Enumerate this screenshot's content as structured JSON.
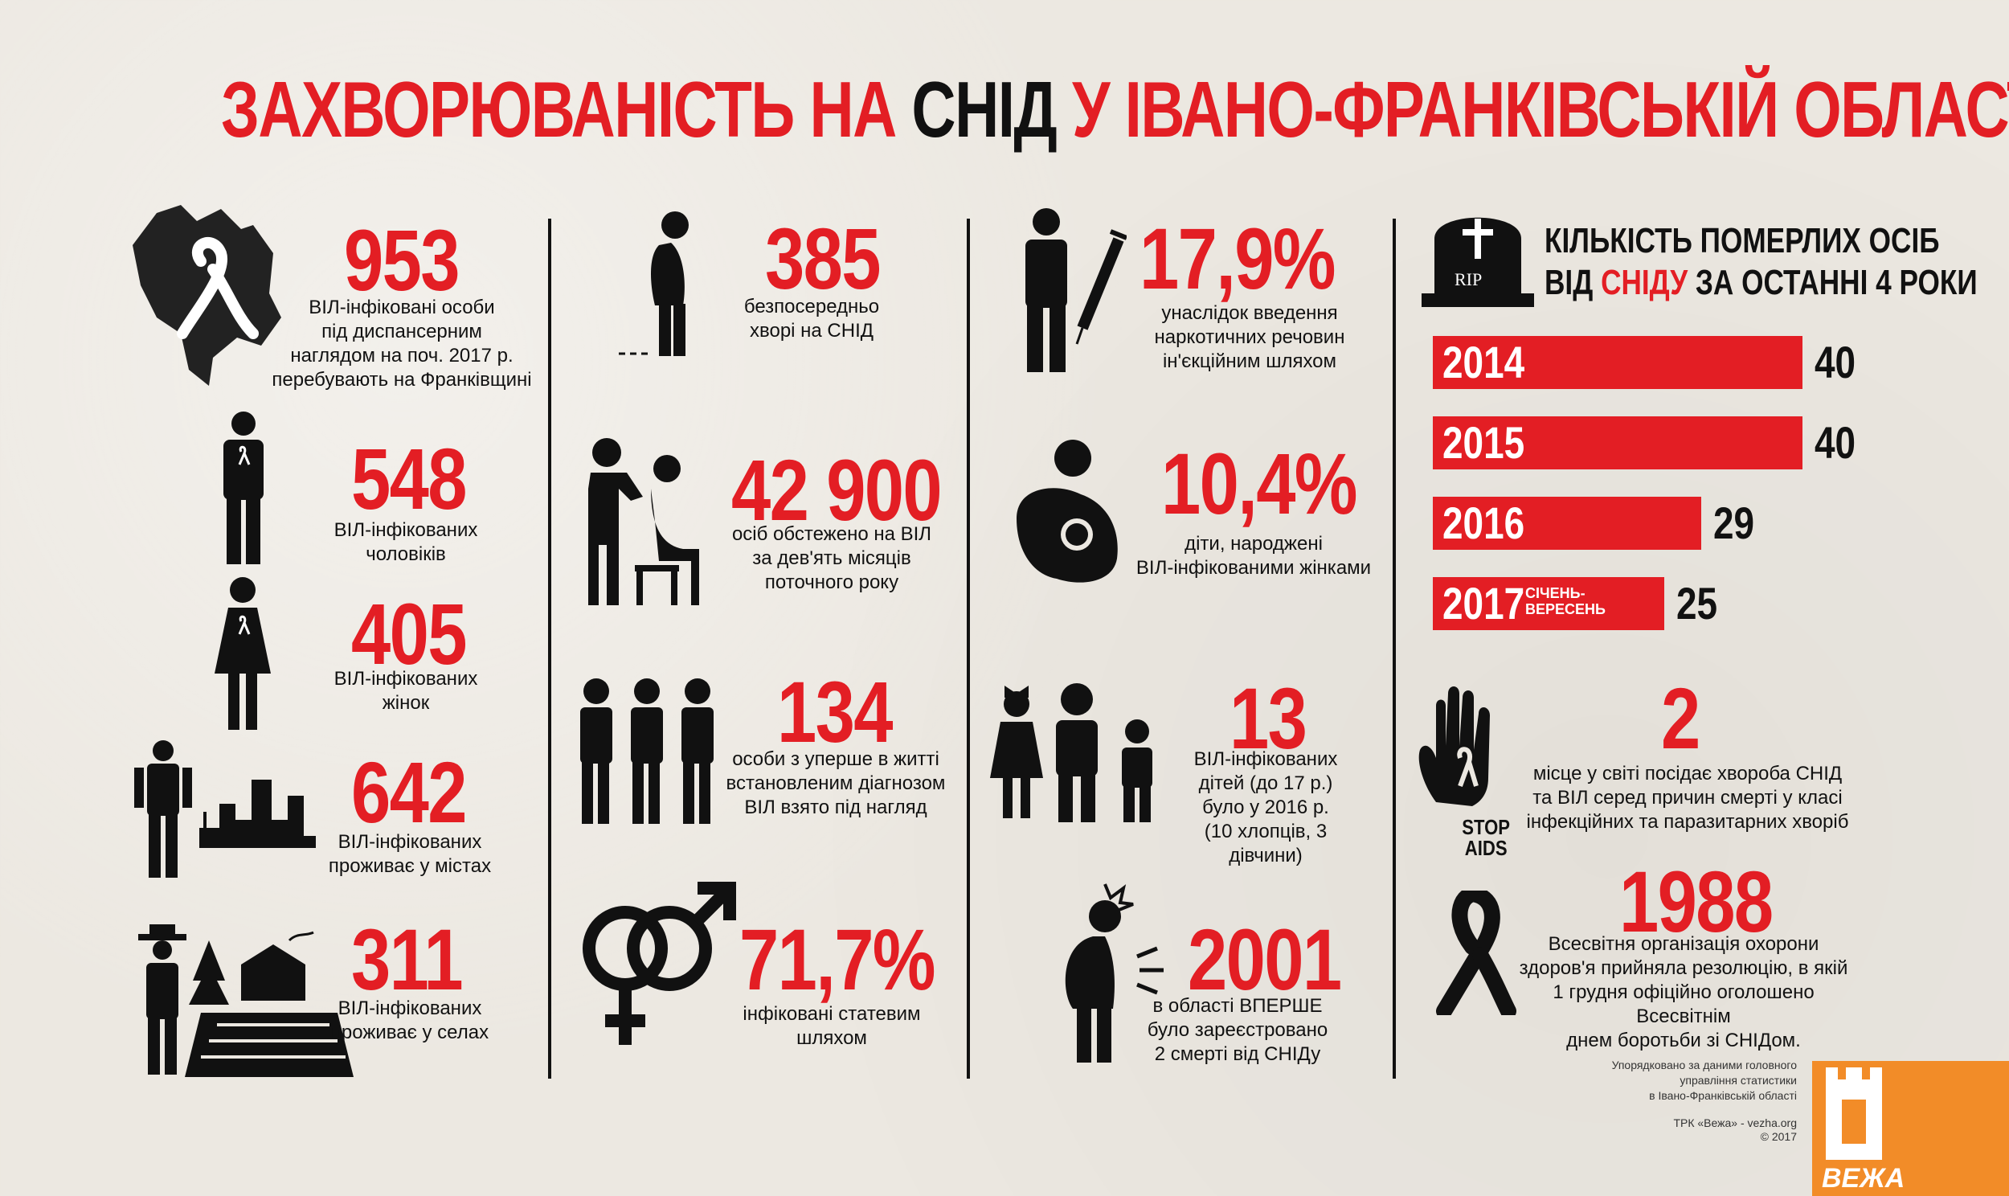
{
  "title": {
    "part1": "ЗАХВОРЮВАНІСТЬ НА ",
    "part2": "СНІД",
    "part3": " У ІВАНО-ФРАНКІВСЬКІЙ ОБЛАСТІ"
  },
  "col1": [
    {
      "number": "953",
      "text": "ВІЛ-інфіковані особи\nпід диспансерним\nнаглядом на поч. 2017 р.\nперебувають на Франківщині"
    },
    {
      "number": "548",
      "text": "ВІЛ-інфікованих\nчоловіків"
    },
    {
      "number": "405",
      "text": "ВІЛ-інфікованих\nжінок"
    },
    {
      "number": "642",
      "text": "ВІЛ-інфікованих\nпроживає у містах"
    },
    {
      "number": "311",
      "text": "ВІЛ-інфікованих\nпроживає у селах"
    }
  ],
  "col2": [
    {
      "number": "385",
      "text": "безпосередньо\nхворі на СНІД"
    },
    {
      "number": "42 900",
      "text": "осіб обстежено на ВІЛ\nза дев'ять місяців\nпоточного року"
    },
    {
      "number": "134",
      "text": "особи з уперше в житті\nвстановленим діагнозом\nВІЛ взято під нагляд"
    },
    {
      "number": "71,7%",
      "text": "інфіковані статевим\nшляхом"
    }
  ],
  "col3": [
    {
      "number": "17,9%",
      "text": "унаслідок введення\nнаркотичних речовин\nін'єкційним шляхом"
    },
    {
      "number": "10,4%",
      "text": "діти, народжені\nВІЛ-інфікованими жінками"
    },
    {
      "number": "13",
      "text": "ВІЛ-інфікованих\nдітей (до 17 р.)\nбуло у 2016 р.\n(10 хлопців, 3 дівчини)"
    },
    {
      "number": "2001",
      "text": "в області ВПЕРШЕ\nбуло зареєстровано\n2 смерті від СНІДу"
    }
  ],
  "deaths": {
    "title_line1": "КІЛЬКІСТЬ ПОМЕРЛИХ ОСІБ",
    "title_line2_a": "ВІД ",
    "title_line2_b": "СНІДУ",
    "title_line2_c": " ЗА ОСТАННІ 4 РОКИ",
    "tombstone_label": "RIP"
  },
  "chart_data": {
    "type": "bar",
    "categories": [
      "2014",
      "2015",
      "2016",
      "2017"
    ],
    "category_notes": [
      "",
      "",
      "",
      "СІЧЕНЬ-\nВЕРЕСЕНЬ"
    ],
    "values": [
      40,
      40,
      29,
      25
    ],
    "title": "КІЛЬКІСТЬ ПОМЕРЛИХ ОСІБ ВІД СНІДУ ЗА ОСТАННІ 4 РОКИ",
    "orientation": "horizontal",
    "color": "#e31e24"
  },
  "col4": [
    {
      "number": "2",
      "text": "місце у світі посідає хвороба СНІД\nта ВІЛ серед причин смерті у класі\nінфекційних та паразитарних хворіб"
    },
    {
      "number": "1988",
      "text": "Всесвітня організація охорони\nздоров'я прийняла резолюцію, в якій\n1 грудня офіційно оголошено Всесвітнім\nднем боротьби зі СНІДом."
    }
  ],
  "stop_aids": "STOP\nAIDS",
  "footer": {
    "source": "Упорядковано за даними головного\nуправління статистики\nв Івано-Франківській області",
    "credit": "ТРК «Вежа» - vezha.org\n© 2017",
    "logo_text": "ВЕЖА"
  },
  "colors": {
    "accent": "#e31e24",
    "dark": "#111111",
    "logo": "#f28c28"
  }
}
